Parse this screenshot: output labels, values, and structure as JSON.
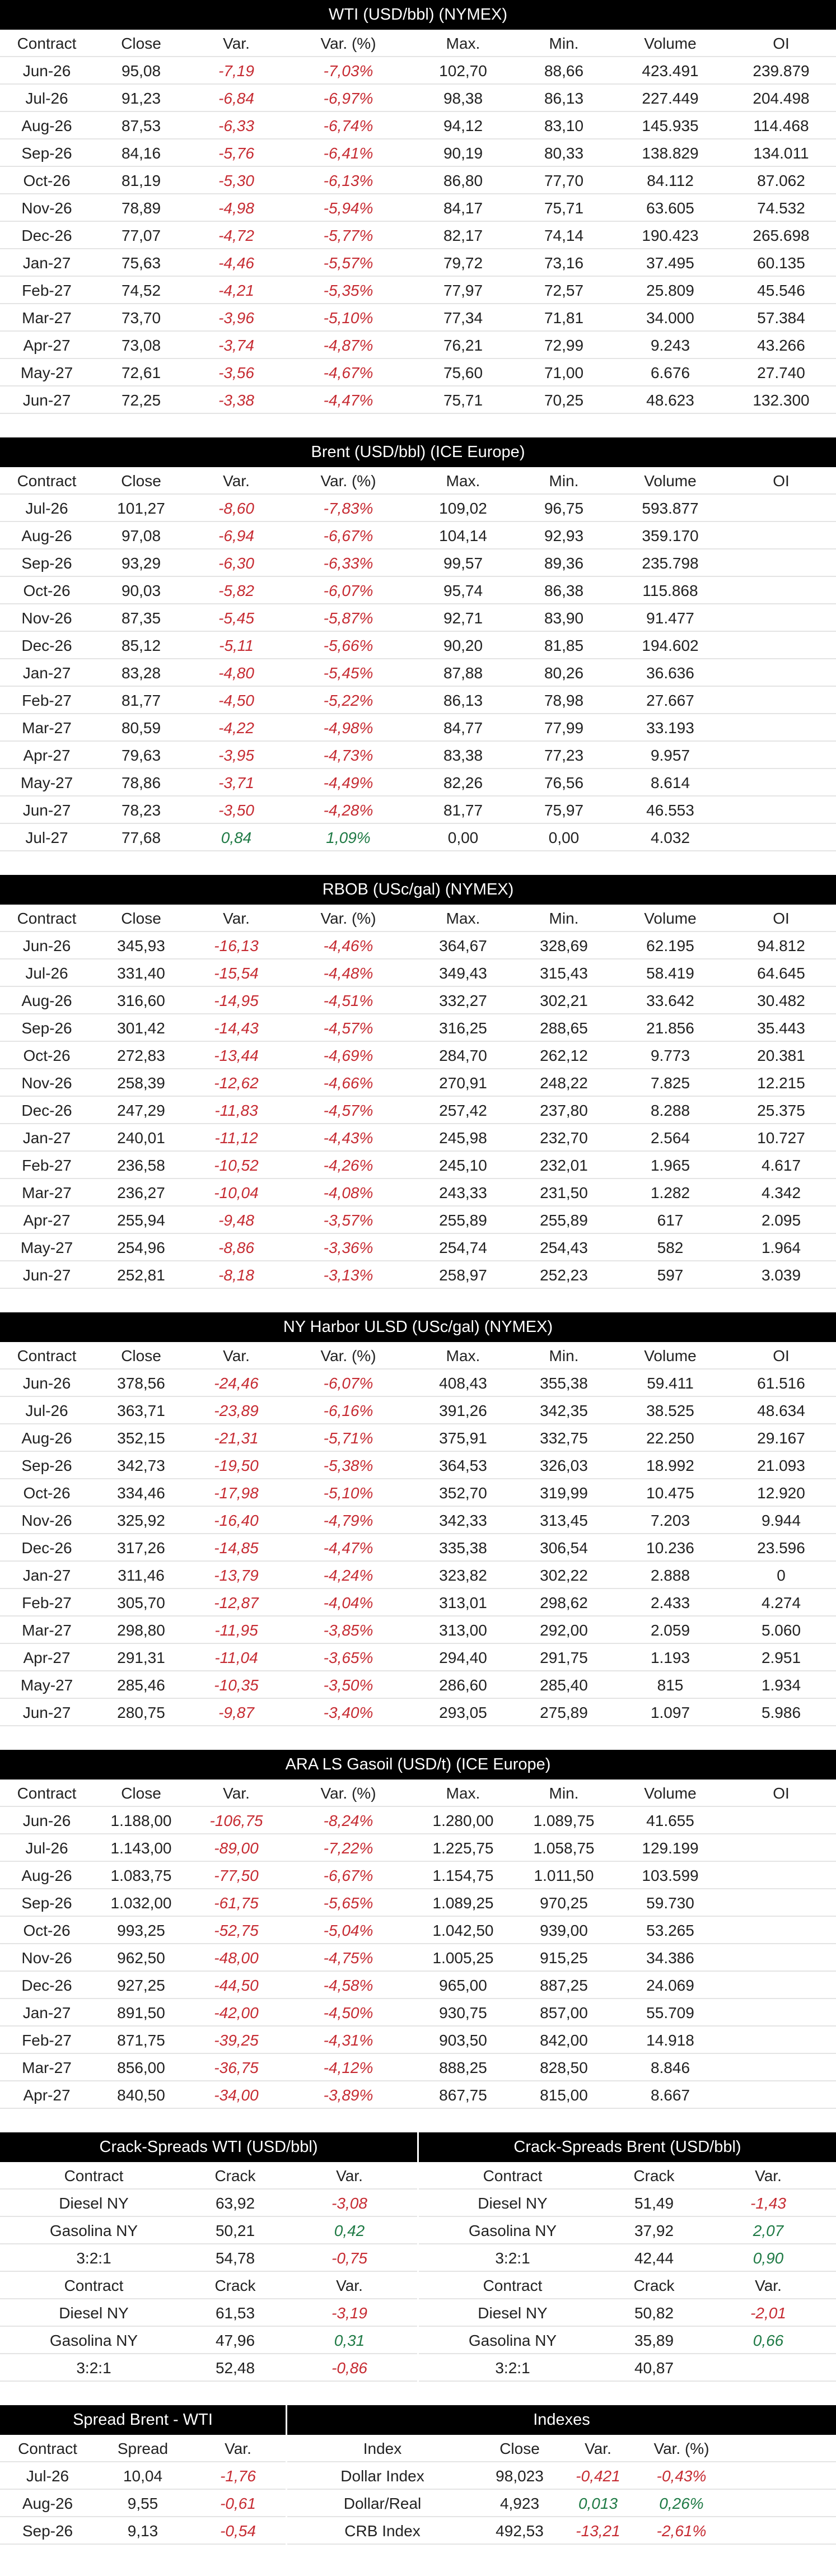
{
  "colors": {
    "header_bg": "#000000",
    "negative": "#c62b32",
    "positive": "#1f7a45"
  },
  "futures_headers": [
    "Contract",
    "Close",
    "Var.",
    "Var. (%)",
    "Max.",
    "Min.",
    "Volume",
    "OI"
  ],
  "tables": [
    {
      "title": "WTI (USD/bbl) (NYMEX)",
      "rows": [
        [
          "Jun-26",
          "95,08",
          "-7,19",
          "-7,03%",
          "102,70",
          "88,66",
          "423.491",
          "239.879"
        ],
        [
          "Jul-26",
          "91,23",
          "-6,84",
          "-6,97%",
          "98,38",
          "86,13",
          "227.449",
          "204.498"
        ],
        [
          "Aug-26",
          "87,53",
          "-6,33",
          "-6,74%",
          "94,12",
          "83,10",
          "145.935",
          "114.468"
        ],
        [
          "Sep-26",
          "84,16",
          "-5,76",
          "-6,41%",
          "90,19",
          "80,33",
          "138.829",
          "134.011"
        ],
        [
          "Oct-26",
          "81,19",
          "-5,30",
          "-6,13%",
          "86,80",
          "77,70",
          "84.112",
          "87.062"
        ],
        [
          "Nov-26",
          "78,89",
          "-4,98",
          "-5,94%",
          "84,17",
          "75,71",
          "63.605",
          "74.532"
        ],
        [
          "Dec-26",
          "77,07",
          "-4,72",
          "-5,77%",
          "82,17",
          "74,14",
          "190.423",
          "265.698"
        ],
        [
          "Jan-27",
          "75,63",
          "-4,46",
          "-5,57%",
          "79,72",
          "73,16",
          "37.495",
          "60.135"
        ],
        [
          "Feb-27",
          "74,52",
          "-4,21",
          "-5,35%",
          "77,97",
          "72,57",
          "25.809",
          "45.546"
        ],
        [
          "Mar-27",
          "73,70",
          "-3,96",
          "-5,10%",
          "77,34",
          "71,81",
          "34.000",
          "57.384"
        ],
        [
          "Apr-27",
          "73,08",
          "-3,74",
          "-4,87%",
          "76,21",
          "72,99",
          "9.243",
          "43.266"
        ],
        [
          "May-27",
          "72,61",
          "-3,56",
          "-4,67%",
          "75,60",
          "71,00",
          "6.676",
          "27.740"
        ],
        [
          "Jun-27",
          "72,25",
          "-3,38",
          "-4,47%",
          "75,71",
          "70,25",
          "48.623",
          "132.300"
        ]
      ]
    },
    {
      "title": "Brent (USD/bbl) (ICE Europe)",
      "rows": [
        [
          "Jul-26",
          "101,27",
          "-8,60",
          "-7,83%",
          "109,02",
          "96,75",
          "593.877",
          ""
        ],
        [
          "Aug-26",
          "97,08",
          "-6,94",
          "-6,67%",
          "104,14",
          "92,93",
          "359.170",
          ""
        ],
        [
          "Sep-26",
          "93,29",
          "-6,30",
          "-6,33%",
          "99,57",
          "89,36",
          "235.798",
          ""
        ],
        [
          "Oct-26",
          "90,03",
          "-5,82",
          "-6,07%",
          "95,74",
          "86,38",
          "115.868",
          ""
        ],
        [
          "Nov-26",
          "87,35",
          "-5,45",
          "-5,87%",
          "92,71",
          "83,90",
          "91.477",
          ""
        ],
        [
          "Dec-26",
          "85,12",
          "-5,11",
          "-5,66%",
          "90,20",
          "81,85",
          "194.602",
          ""
        ],
        [
          "Jan-27",
          "83,28",
          "-4,80",
          "-5,45%",
          "87,88",
          "80,26",
          "36.636",
          ""
        ],
        [
          "Feb-27",
          "81,77",
          "-4,50",
          "-5,22%",
          "86,13",
          "78,98",
          "27.667",
          ""
        ],
        [
          "Mar-27",
          "80,59",
          "-4,22",
          "-4,98%",
          "84,77",
          "77,99",
          "33.193",
          ""
        ],
        [
          "Apr-27",
          "79,63",
          "-3,95",
          "-4,73%",
          "83,38",
          "77,23",
          "9.957",
          ""
        ],
        [
          "May-27",
          "78,86",
          "-3,71",
          "-4,49%",
          "82,26",
          "76,56",
          "8.614",
          ""
        ],
        [
          "Jun-27",
          "78,23",
          "-3,50",
          "-4,28%",
          "81,77",
          "75,97",
          "46.553",
          ""
        ],
        [
          "Jul-27",
          "77,68",
          "0,84",
          "1,09%",
          "0,00",
          "0,00",
          "4.032",
          ""
        ]
      ]
    },
    {
      "title": "RBOB (USc/gal) (NYMEX)",
      "rows": [
        [
          "Jun-26",
          "345,93",
          "-16,13",
          "-4,46%",
          "364,67",
          "328,69",
          "62.195",
          "94.812"
        ],
        [
          "Jul-26",
          "331,40",
          "-15,54",
          "-4,48%",
          "349,43",
          "315,43",
          "58.419",
          "64.645"
        ],
        [
          "Aug-26",
          "316,60",
          "-14,95",
          "-4,51%",
          "332,27",
          "302,21",
          "33.642",
          "30.482"
        ],
        [
          "Sep-26",
          "301,42",
          "-14,43",
          "-4,57%",
          "316,25",
          "288,65",
          "21.856",
          "35.443"
        ],
        [
          "Oct-26",
          "272,83",
          "-13,44",
          "-4,69%",
          "284,70",
          "262,12",
          "9.773",
          "20.381"
        ],
        [
          "Nov-26",
          "258,39",
          "-12,62",
          "-4,66%",
          "270,91",
          "248,22",
          "7.825",
          "12.215"
        ],
        [
          "Dec-26",
          "247,29",
          "-11,83",
          "-4,57%",
          "257,42",
          "237,80",
          "8.288",
          "25.375"
        ],
        [
          "Jan-27",
          "240,01",
          "-11,12",
          "-4,43%",
          "245,98",
          "232,70",
          "2.564",
          "10.727"
        ],
        [
          "Feb-27",
          "236,58",
          "-10,52",
          "-4,26%",
          "245,10",
          "232,01",
          "1.965",
          "4.617"
        ],
        [
          "Mar-27",
          "236,27",
          "-10,04",
          "-4,08%",
          "243,33",
          "231,50",
          "1.282",
          "4.342"
        ],
        [
          "Apr-27",
          "255,94",
          "-9,48",
          "-3,57%",
          "255,89",
          "255,89",
          "617",
          "2.095"
        ],
        [
          "May-27",
          "254,96",
          "-8,86",
          "-3,36%",
          "254,74",
          "254,43",
          "582",
          "1.964"
        ],
        [
          "Jun-27",
          "252,81",
          "-8,18",
          "-3,13%",
          "258,97",
          "252,23",
          "597",
          "3.039"
        ]
      ]
    },
    {
      "title": "NY Harbor ULSD (USc/gal) (NYMEX)",
      "rows": [
        [
          "Jun-26",
          "378,56",
          "-24,46",
          "-6,07%",
          "408,43",
          "355,38",
          "59.411",
          "61.516"
        ],
        [
          "Jul-26",
          "363,71",
          "-23,89",
          "-6,16%",
          "391,26",
          "342,35",
          "38.525",
          "48.634"
        ],
        [
          "Aug-26",
          "352,15",
          "-21,31",
          "-5,71%",
          "375,91",
          "332,75",
          "22.250",
          "29.167"
        ],
        [
          "Sep-26",
          "342,73",
          "-19,50",
          "-5,38%",
          "364,53",
          "326,03",
          "18.992",
          "21.093"
        ],
        [
          "Oct-26",
          "334,46",
          "-17,98",
          "-5,10%",
          "352,70",
          "319,99",
          "10.475",
          "12.920"
        ],
        [
          "Nov-26",
          "325,92",
          "-16,40",
          "-4,79%",
          "342,33",
          "313,45",
          "7.203",
          "9.944"
        ],
        [
          "Dec-26",
          "317,26",
          "-14,85",
          "-4,47%",
          "335,38",
          "306,54",
          "10.236",
          "23.596"
        ],
        [
          "Jan-27",
          "311,46",
          "-13,79",
          "-4,24%",
          "323,82",
          "302,22",
          "2.888",
          "0"
        ],
        [
          "Feb-27",
          "305,70",
          "-12,87",
          "-4,04%",
          "313,01",
          "298,62",
          "2.433",
          "4.274"
        ],
        [
          "Mar-27",
          "298,80",
          "-11,95",
          "-3,85%",
          "313,00",
          "292,00",
          "2.059",
          "5.060"
        ],
        [
          "Apr-27",
          "291,31",
          "-11,04",
          "-3,65%",
          "294,40",
          "291,75",
          "1.193",
          "2.951"
        ],
        [
          "May-27",
          "285,46",
          "-10,35",
          "-3,50%",
          "286,60",
          "285,40",
          "815",
          "1.934"
        ],
        [
          "Jun-27",
          "280,75",
          "-9,87",
          "-3,40%",
          "293,05",
          "275,89",
          "1.097",
          "5.986"
        ]
      ]
    },
    {
      "title": "ARA LS Gasoil (USD/t) (ICE Europe)",
      "rows": [
        [
          "Jun-26",
          "1.188,00",
          "-106,75",
          "-8,24%",
          "1.280,00",
          "1.089,75",
          "41.655",
          ""
        ],
        [
          "Jul-26",
          "1.143,00",
          "-89,00",
          "-7,22%",
          "1.225,75",
          "1.058,75",
          "129.199",
          ""
        ],
        [
          "Aug-26",
          "1.083,75",
          "-77,50",
          "-6,67%",
          "1.154,75",
          "1.011,50",
          "103.599",
          ""
        ],
        [
          "Sep-26",
          "1.032,00",
          "-61,75",
          "-5,65%",
          "1.089,25",
          "970,25",
          "59.730",
          ""
        ],
        [
          "Oct-26",
          "993,25",
          "-52,75",
          "-5,04%",
          "1.042,50",
          "939,00",
          "53.265",
          ""
        ],
        [
          "Nov-26",
          "962,50",
          "-48,00",
          "-4,75%",
          "1.005,25",
          "915,25",
          "34.386",
          ""
        ],
        [
          "Dec-26",
          "927,25",
          "-44,50",
          "-4,58%",
          "965,00",
          "887,25",
          "24.069",
          ""
        ],
        [
          "Jan-27",
          "891,50",
          "-42,00",
          "-4,50%",
          "930,75",
          "857,00",
          "55.709",
          ""
        ],
        [
          "Feb-27",
          "871,75",
          "-39,25",
          "-4,31%",
          "903,50",
          "842,00",
          "14.918",
          ""
        ],
        [
          "Mar-27",
          "856,00",
          "-36,75",
          "-4,12%",
          "888,25",
          "828,50",
          "8.846",
          ""
        ],
        [
          "Apr-27",
          "840,50",
          "-34,00",
          "-3,89%",
          "867,75",
          "815,00",
          "8.667",
          ""
        ]
      ]
    }
  ],
  "crack": {
    "headers": [
      "Contract",
      "Crack",
      "Var."
    ],
    "wti": {
      "title": "Crack-Spreads WTI (USD/bbl)",
      "block1": [
        [
          "Diesel NY",
          "63,92",
          "-3,08"
        ],
        [
          "Gasolina NY",
          "50,21",
          "0,42"
        ],
        [
          "3:2:1",
          "54,78",
          "-0,75"
        ]
      ],
      "block2": [
        [
          "Diesel NY",
          "61,53",
          "-3,19"
        ],
        [
          "Gasolina NY",
          "47,96",
          "0,31"
        ],
        [
          "3:2:1",
          "52,48",
          "-0,86"
        ]
      ]
    },
    "brent": {
      "title": "Crack-Spreads Brent (USD/bbl)",
      "block1": [
        [
          "Diesel NY",
          "51,49",
          "-1,43"
        ],
        [
          "Gasolina NY",
          "37,92",
          "2,07"
        ],
        [
          "3:2:1",
          "42,44",
          "0,90"
        ]
      ],
      "block2": [
        [
          "Diesel NY",
          "50,82",
          "-2,01"
        ],
        [
          "Gasolina NY",
          "35,89",
          "0,66"
        ],
        [
          "3:2:1",
          "40,87",
          ""
        ]
      ]
    }
  },
  "spread": {
    "title": "Spread Brent - WTI",
    "headers": [
      "Contract",
      "Spread",
      "Var."
    ],
    "rows": [
      [
        "Jul-26",
        "10,04",
        "-1,76"
      ],
      [
        "Aug-26",
        "9,55",
        "-0,61"
      ],
      [
        "Sep-26",
        "9,13",
        "-0,54"
      ]
    ]
  },
  "indexes": {
    "title": "Indexes",
    "headers": [
      "Index",
      "Close",
      "Var.",
      "Var. (%)"
    ],
    "rows": [
      [
        "Dollar Index",
        "98,023",
        "-0,421",
        "-0,43%"
      ],
      [
        "Dollar/Real",
        "4,923",
        "0,013",
        "0,26%"
      ],
      [
        "CRB Index",
        "492,53",
        "-13,21",
        "-2,61%"
      ]
    ]
  }
}
